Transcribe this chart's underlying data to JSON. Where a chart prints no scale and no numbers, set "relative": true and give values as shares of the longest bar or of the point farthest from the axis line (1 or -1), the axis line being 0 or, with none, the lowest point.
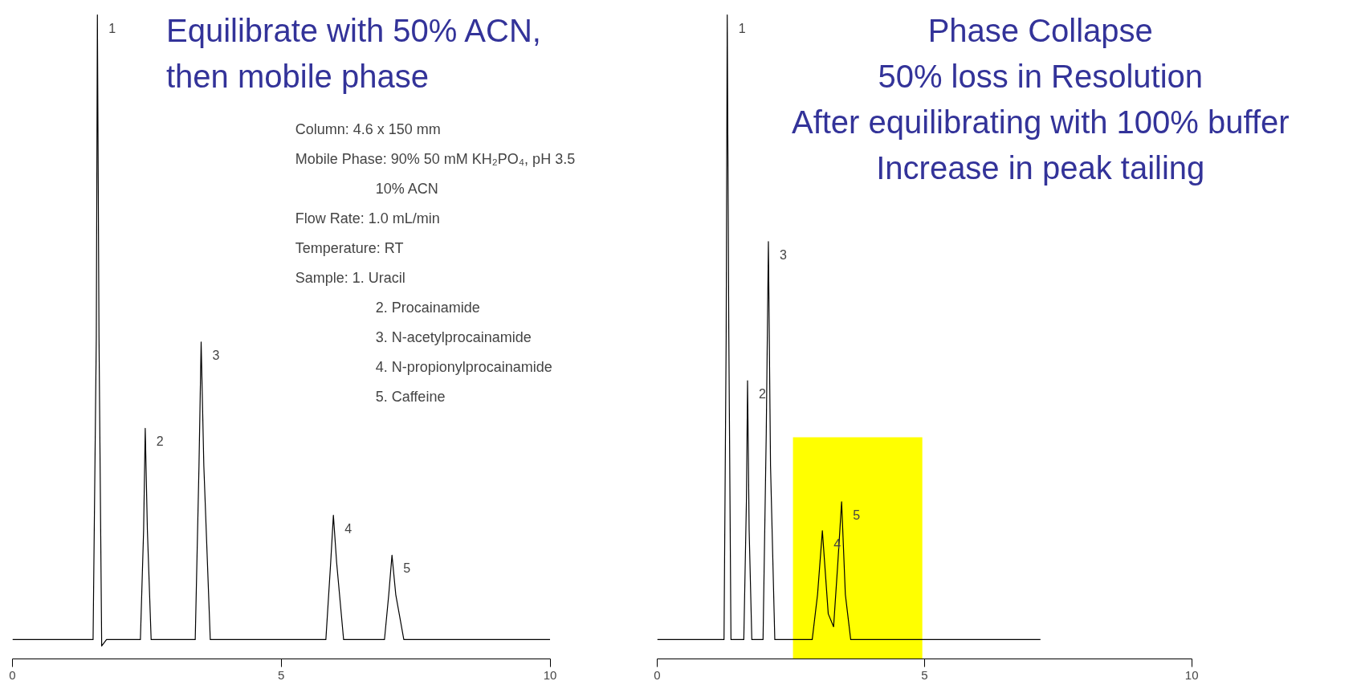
{
  "chart_data": [
    {
      "type": "line",
      "relative": true,
      "title": "Equilibrate with 50% ACN,\nthen mobile phase",
      "xlim": [
        0,
        10
      ],
      "xticks": [
        0,
        5,
        10
      ],
      "grid": false,
      "tick_labels": "x",
      "x": [
        0,
        1.5,
        1.56,
        1.58,
        1.61,
        1.66,
        1.75,
        2.38,
        2.44,
        2.47,
        2.51,
        2.58,
        3.4,
        3.47,
        3.51,
        3.56,
        3.68,
        5.83,
        5.92,
        5.97,
        6.03,
        6.16,
        6.92,
        7.0,
        7.06,
        7.13,
        7.28,
        10
      ],
      "series": [
        {
          "color": "#000000",
          "values": [
            0.03,
            0.03,
            0.5,
            1,
            0.5,
            0.02,
            0.03,
            0.03,
            0.2,
            0.358,
            0.2,
            0.03,
            0.03,
            0.3,
            0.492,
            0.3,
            0.03,
            0.03,
            0.15,
            0.223,
            0.15,
            0.03,
            0.03,
            0.1,
            0.161,
            0.1,
            0.03,
            0.03
          ]
        }
      ],
      "annotations": [
        {
          "text": "1",
          "x": 1.58,
          "y": 1
        },
        {
          "text": "2",
          "x": 2.47,
          "y": 0.358
        },
        {
          "text": "3",
          "x": 3.51,
          "y": 0.492
        },
        {
          "text": "4",
          "x": 5.97,
          "y": 0.223
        },
        {
          "text": "5",
          "x": 7.06,
          "y": 0.161
        },
        "Column:  4.6 x 150 mm",
        "Mobile Phase:  90% 50 mM KH₂PO₄,  pH 3.5",
        "10% ACN",
        "Flow  Rate:  1.0 mL/min",
        "Temperature:  RT",
        "Sample:  1. Uracil",
        "2. Procainamide",
        "3. N-acetylprocainamide",
        "4. N-propionylprocainamide",
        "5. Caffeine"
      ]
    },
    {
      "type": "line",
      "relative": true,
      "title": "Phase Collapse\n50% loss in Resolution\nAfter equilibrating with 100% buffer\nIncrease in peak tailing",
      "xlim": [
        0,
        10
      ],
      "xticks": [
        0,
        5,
        10
      ],
      "grid": false,
      "tick_labels": "x",
      "x": [
        0,
        1.25,
        1.29,
        1.31,
        1.34,
        1.38,
        1.62,
        1.67,
        1.69,
        1.72,
        1.77,
        1.98,
        2.04,
        2.08,
        2.12,
        2.2,
        2.9,
        3.0,
        3.09,
        3.2,
        3.3,
        3.38,
        3.45,
        3.52,
        3.62,
        7.17
      ],
      "series": [
        {
          "color": "#000000",
          "values": [
            0.03,
            0.03,
            0.5,
            1,
            0.5,
            0.03,
            0.03,
            0.25,
            0.432,
            0.2,
            0.03,
            0.03,
            0.35,
            0.648,
            0.3,
            0.03,
            0.03,
            0.1,
            0.199,
            0.07,
            0.05,
            0.15,
            0.244,
            0.1,
            0.03,
            0.03
          ]
        }
      ],
      "bands": [
        {
          "axis": "x",
          "from": 2.54,
          "to": 4.96,
          "color": "#ffff00"
        }
      ],
      "annotations": [
        {
          "text": "1",
          "x": 1.31,
          "y": 1
        },
        {
          "text": "2",
          "x": 1.69,
          "y": 0.432
        },
        {
          "text": "3",
          "x": 2.08,
          "y": 0.648
        },
        {
          "text": "4",
          "x": 3.09,
          "y": 0.199
        },
        {
          "text": "5",
          "x": 3.45,
          "y": 0.244
        }
      ]
    }
  ]
}
